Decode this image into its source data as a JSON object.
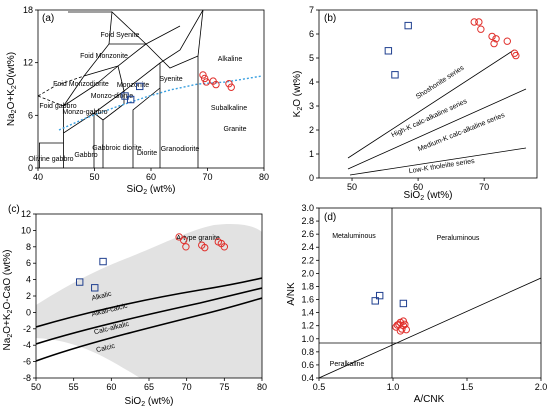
{
  "colors": {
    "granite_marker": "#e0302c",
    "enclave_marker": "#1f3f8f",
    "alkaline_curve": "#3aa0e0",
    "atype_field": "#e2e2e2"
  },
  "chart_data": [
    {
      "type": "scatter",
      "panel": "(a)",
      "title": "",
      "xlabel": "SiO2 (wt%)",
      "ylabel": "Na2O+K2O(wt%)",
      "xlim": [
        40,
        80
      ],
      "ylim": [
        0,
        18
      ],
      "xticks": [
        "40",
        "50",
        "60",
        "70",
        "80"
      ],
      "yticks": [
        "0",
        "6",
        "12",
        "18"
      ],
      "region_labels": [
        "Foid Syenite",
        "Foid Monzonite",
        "Foid Monzodiorite",
        "Foid gabbro",
        "Monzonite",
        "Monzo-diorite",
        "Monzo-gabbro",
        "Gabbroic diorite",
        "Diorite",
        "Gabbro",
        "Olivine gabbro",
        "Syenite",
        "Granodiorite",
        "Granite",
        "Alkaline",
        "Subalkaline"
      ],
      "series": [
        {
          "name": "",
          "marker": "circle",
          "x": [
            69.2,
            69.5,
            69.8,
            71.0,
            71.5,
            73.8,
            74.2
          ],
          "y": [
            10.6,
            10.2,
            9.8,
            9.9,
            9.5,
            9.6,
            9.2
          ]
        },
        {
          "name": "",
          "marker": "square",
          "x": [
            55.4,
            56.4,
            58.0
          ],
          "y": [
            8.2,
            7.8,
            9.3
          ]
        }
      ]
    },
    {
      "type": "scatter",
      "panel": "(b)",
      "title": "",
      "xlabel": "SiO2 (wt%)",
      "ylabel": "K2O (wt%)",
      "xlim": [
        45,
        78
      ],
      "ylim": [
        0,
        7
      ],
      "xticks": [
        "50",
        "60",
        "70"
      ],
      "yticks": [
        "0",
        "1",
        "2",
        "3",
        "4",
        "5",
        "6",
        "7"
      ],
      "region_labels": [
        "Shoshonite series",
        "High-K calc-alkaline series",
        "Medium-K calc-alkaline series",
        "Low-K tholeiite series"
      ],
      "series": [
        {
          "name": "",
          "marker": "circle",
          "x": [
            68.5,
            69.2,
            69.5,
            71.2,
            71.8,
            71.5,
            73.5,
            74.6,
            74.8
          ],
          "y": [
            6.5,
            6.5,
            6.2,
            5.9,
            5.8,
            5.6,
            5.7,
            5.2,
            5.1
          ]
        },
        {
          "name": "",
          "marker": "square",
          "x": [
            55.5,
            56.5,
            58.5
          ],
          "y": [
            5.3,
            4.3,
            6.35
          ]
        }
      ]
    },
    {
      "type": "scatter",
      "panel": "(c)",
      "title": "",
      "xlabel": "SiO2 (wt%)",
      "ylabel": "Na2O+K2O-CaO (wt%)",
      "xlim": [
        50,
        80
      ],
      "ylim": [
        -8,
        12
      ],
      "xticks": [
        "50",
        "55",
        "60",
        "65",
        "70",
        "75",
        "80"
      ],
      "yticks": [
        "-8",
        "-6",
        "-4",
        "-2",
        "0",
        "2",
        "4",
        "6",
        "8",
        "10",
        "12"
      ],
      "region_labels": [
        "A-type granite",
        "Alkalic",
        "Alkali-calcic",
        "Calc-alkalic",
        "Calcic"
      ],
      "series": [
        {
          "name": "",
          "marker": "circle",
          "x": [
            69.0,
            69.6,
            69.9,
            72.0,
            72.4,
            74.2,
            74.6,
            75.0
          ],
          "y": [
            9.2,
            8.8,
            8.0,
            8.2,
            7.9,
            8.6,
            8.4,
            8.0
          ]
        },
        {
          "name": "",
          "marker": "square",
          "x": [
            55.8,
            57.8,
            58.9
          ],
          "y": [
            3.7,
            3.0,
            6.2
          ]
        }
      ]
    },
    {
      "type": "scatter",
      "panel": "(d)",
      "title": "",
      "xlabel": "A/CNK",
      "ylabel": "A/NK",
      "xlim": [
        0.5,
        2.0
      ],
      "ylim": [
        0.4,
        3.0
      ],
      "xticks": [
        "0.5",
        "1.0",
        "1.5",
        "2.0"
      ],
      "yticks": [
        "0.4",
        "0.6",
        "0.8",
        "1.0",
        "1.2",
        "1.4",
        "1.6",
        "1.8",
        "2.0",
        "2.2",
        "2.4",
        "2.6",
        "2.8",
        "3.0"
      ],
      "region_labels": [
        "Metaluminous",
        "Peraluminous",
        "Peralkaline"
      ],
      "series": [
        {
          "name": "",
          "marker": "circle",
          "x": [
            1.02,
            1.04,
            1.05,
            1.06,
            1.07,
            1.08,
            1.09,
            1.05,
            1.03,
            1.07
          ],
          "y": [
            1.18,
            1.22,
            1.25,
            1.15,
            1.2,
            1.22,
            1.14,
            1.12,
            1.21,
            1.27
          ]
        },
        {
          "name": "",
          "marker": "square",
          "x": [
            0.88,
            0.91,
            1.07
          ],
          "y": [
            1.58,
            1.66,
            1.54
          ]
        }
      ]
    }
  ]
}
